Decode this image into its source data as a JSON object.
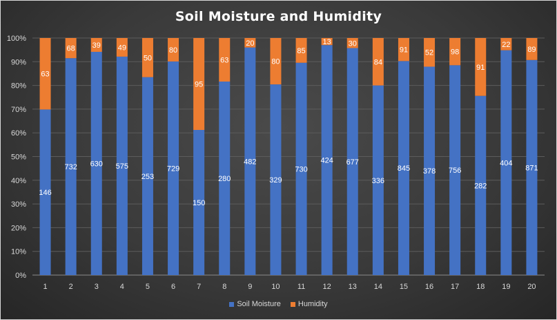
{
  "chart_data": {
    "type": "bar",
    "stacked": "percent",
    "title": "Soil Moisture and Humidity",
    "xlabel": "",
    "ylabel": "",
    "categories": [
      "1",
      "2",
      "3",
      "4",
      "5",
      "6",
      "7",
      "8",
      "9",
      "10",
      "11",
      "12",
      "13",
      "14",
      "15",
      "16",
      "17",
      "18",
      "19",
      "20"
    ],
    "yticks": [
      "0%",
      "10%",
      "20%",
      "30%",
      "40%",
      "50%",
      "60%",
      "70%",
      "80%",
      "90%",
      "100%"
    ],
    "ylim": [
      0,
      1
    ],
    "grid": true,
    "legend_position": "bottom",
    "series": [
      {
        "name": "Soil Moisture",
        "color": "#4472c4",
        "values": [
          146,
          732,
          630,
          575,
          253,
          729,
          150,
          280,
          482,
          329,
          730,
          424,
          677,
          336,
          845,
          378,
          756,
          282,
          404,
          871
        ]
      },
      {
        "name": "Humidity",
        "color": "#ed7d31",
        "values": [
          63,
          68,
          39,
          49,
          50,
          80,
          95,
          63,
          20,
          80,
          85,
          13,
          30,
          84,
          91,
          52,
          98,
          91,
          22,
          89
        ]
      }
    ]
  }
}
